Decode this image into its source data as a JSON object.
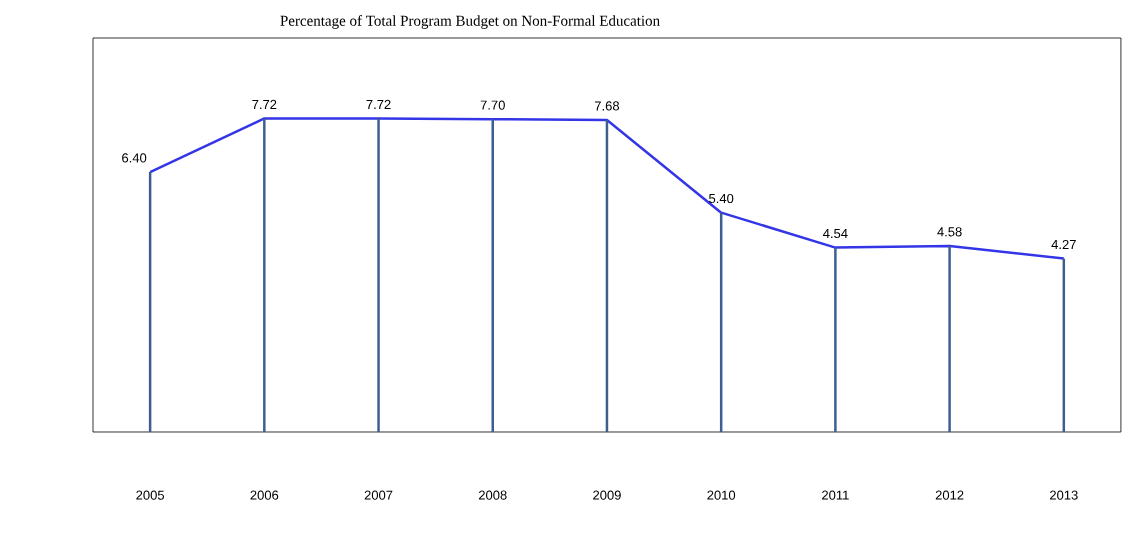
{
  "chart_data": {
    "type": "line",
    "title": "Percentage of Total Program Budget on Non-Formal Education",
    "categories": [
      "2005",
      "2006",
      "2007",
      "2008",
      "2009",
      "2010",
      "2011",
      "2012",
      "2013"
    ],
    "ylim": [
      0,
      9.7
    ],
    "marker": "none",
    "grid": false,
    "tick_labels": "x",
    "series": [
      {
        "color": "#3535e8",
        "values": [
          6.4,
          7.72,
          7.72,
          7.7,
          7.68,
          5.4,
          4.54,
          4.58,
          4.27
        ],
        "value_labels": [
          "6.40",
          "7.72",
          "7.72",
          "7.70",
          "7.68",
          "5.40",
          "4.54",
          "4.58",
          "4.27"
        ]
      },
      {
        "type": "bar",
        "color": "#3d5f8f",
        "values": [
          6.4,
          7.72,
          7.72,
          7.7,
          7.68,
          5.4,
          4.54,
          4.58,
          4.27
        ]
      }
    ]
  }
}
